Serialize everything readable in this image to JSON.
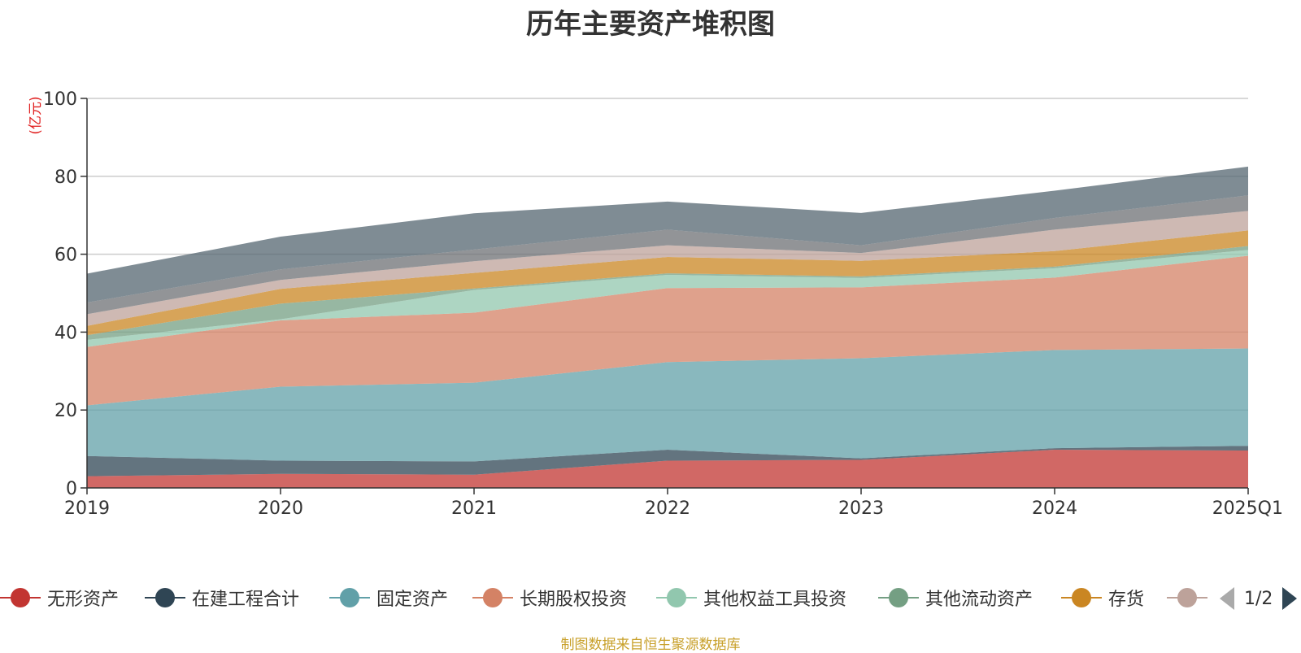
{
  "chart_data": {
    "type": "area",
    "stacked": true,
    "title": "历年主要资产堆积图",
    "ylabel": "(亿元)",
    "ylim": [
      0,
      100
    ],
    "yticks": [
      0,
      20,
      40,
      60,
      80,
      100
    ],
    "categories": [
      "2019",
      "2020",
      "2021",
      "2022",
      "2023",
      "2024",
      "2025Q1"
    ],
    "series": [
      {
        "name": "无形资产",
        "color": "#c23531",
        "values": [
          3,
          3.6,
          3.4,
          7,
          7.2,
          9.8,
          9.6
        ]
      },
      {
        "name": "在建工程合计",
        "color": "#2f4554",
        "values": [
          5.2,
          3.4,
          3.4,
          2.8,
          0.4,
          0.4,
          1.2
        ]
      },
      {
        "name": "固定资产",
        "color": "#61a0a8",
        "values": [
          13,
          19,
          20.2,
          22.5,
          25.7,
          25.2,
          25
        ]
      },
      {
        "name": "长期股权投资",
        "color": "#d48265",
        "values": [
          15,
          17,
          18,
          19,
          18.2,
          18.6,
          23.8
        ]
      },
      {
        "name": "其他权益工具投资",
        "color": "#91c7ae",
        "values": [
          1.8,
          0.3,
          5.8,
          3.4,
          2.4,
          2.4,
          1.5
        ]
      },
      {
        "name": "其他流动资产",
        "color": "#749f83",
        "values": [
          1.2,
          4,
          0.4,
          0.4,
          0.4,
          0.4,
          1
        ]
      },
      {
        "name": "存货",
        "color": "#ca8622",
        "values": [
          2.4,
          3.8,
          4,
          4.2,
          4,
          4,
          4
        ]
      },
      {
        "name": "",
        "color": "#bda29a",
        "values": [
          3,
          2.3,
          3,
          3,
          2,
          5.5,
          5
        ]
      },
      {
        "name": "",
        "color": "#6e7074",
        "values": [
          3,
          2.7,
          3,
          4,
          2,
          3,
          4
        ]
      },
      {
        "name": "",
        "color": "#546570",
        "values": [
          7.4,
          8.4,
          9.3,
          7.2,
          8.3,
          7,
          7.4
        ]
      }
    ]
  },
  "legend": {
    "visible_items": [
      "无形资产",
      "在建工程合计",
      "固定资产",
      "长期股权投资",
      "其他权益工具投资",
      "其他流动资产",
      "存货",
      ""
    ],
    "page_text": "1/2"
  },
  "footer": {
    "source": "制图数据来自恒生聚源数据库"
  }
}
